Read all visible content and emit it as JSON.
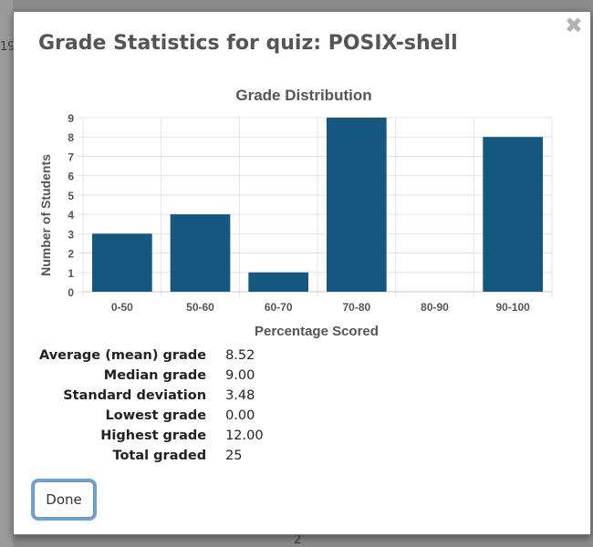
{
  "background": {
    "left_text": "19",
    "bottom_text": "2"
  },
  "dialog": {
    "title": "Grade Statistics for quiz: POSIX-shell",
    "close_icon": "close-icon",
    "done_label": "Done"
  },
  "chart_data": {
    "type": "bar",
    "title": "Grade Distribution",
    "xlabel": "Percentage Scored",
    "ylabel": "Number of Students",
    "categories": [
      "0-50",
      "50-60",
      "60-70",
      "70-80",
      "80-90",
      "90-100"
    ],
    "values": [
      3,
      4,
      1,
      9,
      0,
      8
    ],
    "ylim": [
      0,
      9
    ],
    "yticks": [
      0,
      1,
      2,
      3,
      4,
      5,
      6,
      7,
      8,
      9
    ],
    "grid": true,
    "bar_color": "#165780"
  },
  "stats": [
    {
      "label": "Average (mean) grade",
      "value": "8.52"
    },
    {
      "label": "Median grade",
      "value": "9.00"
    },
    {
      "label": "Standard deviation",
      "value": "3.48"
    },
    {
      "label": "Lowest grade",
      "value": "0.00"
    },
    {
      "label": "Highest grade",
      "value": "12.00"
    },
    {
      "label": "Total graded",
      "value": "25"
    }
  ]
}
